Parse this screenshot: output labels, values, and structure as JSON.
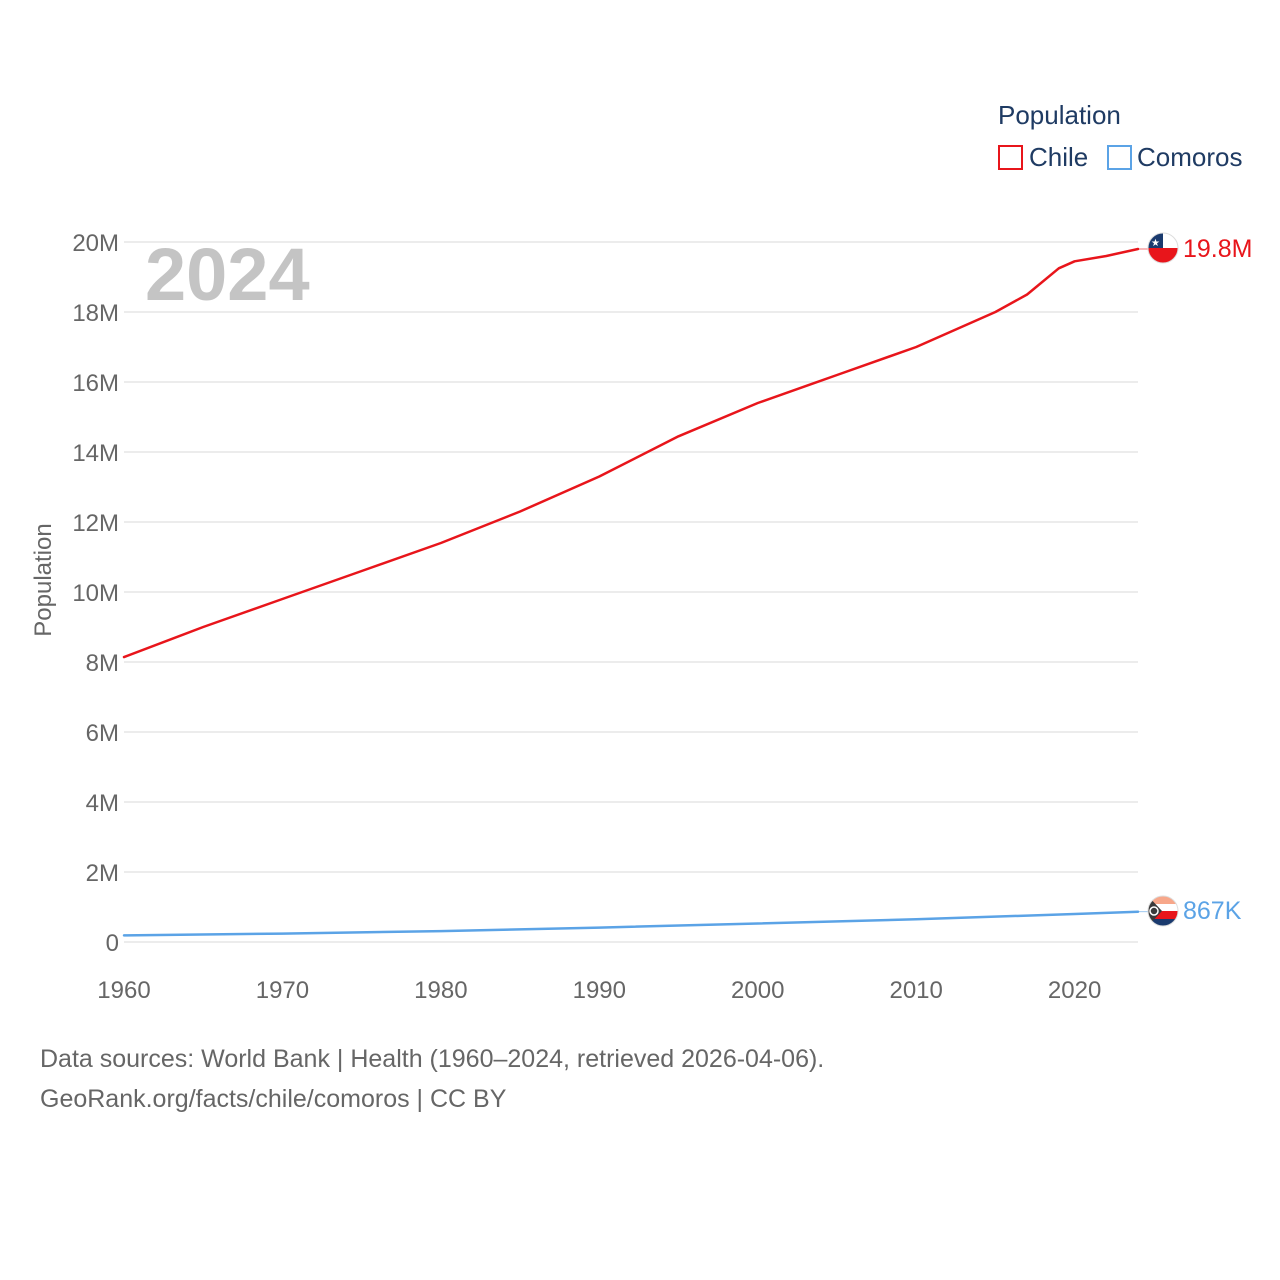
{
  "chart_data": {
    "type": "line",
    "year_label": "2024",
    "ylabel": "Population",
    "xlabel": "",
    "ylim": [
      0,
      20000000
    ],
    "xlim": [
      1960,
      2024
    ],
    "y_ticks": [
      {
        "value": 0,
        "label": "0"
      },
      {
        "value": 2000000,
        "label": "2M"
      },
      {
        "value": 4000000,
        "label": "4M"
      },
      {
        "value": 6000000,
        "label": "6M"
      },
      {
        "value": 8000000,
        "label": "8M"
      },
      {
        "value": 10000000,
        "label": "10M"
      },
      {
        "value": 12000000,
        "label": "12M"
      },
      {
        "value": 14000000,
        "label": "14M"
      },
      {
        "value": 16000000,
        "label": "16M"
      },
      {
        "value": 18000000,
        "label": "18M"
      },
      {
        "value": 20000000,
        "label": "20M"
      }
    ],
    "x_ticks": [
      {
        "value": 1960,
        "label": "1960"
      },
      {
        "value": 1970,
        "label": "1970"
      },
      {
        "value": 1980,
        "label": "1980"
      },
      {
        "value": 1990,
        "label": "1990"
      },
      {
        "value": 2000,
        "label": "2000"
      },
      {
        "value": 2010,
        "label": "2010"
      },
      {
        "value": 2020,
        "label": "2020"
      }
    ],
    "legend_title": "Population",
    "series": [
      {
        "name": "Chile",
        "color": "#e8151b",
        "end_label": "19.8M",
        "points": [
          [
            1960,
            8140000
          ],
          [
            1965,
            9000000
          ],
          [
            1970,
            9800000
          ],
          [
            1975,
            10600000
          ],
          [
            1980,
            11400000
          ],
          [
            1985,
            12300000
          ],
          [
            1990,
            13300000
          ],
          [
            1995,
            14450000
          ],
          [
            2000,
            15400000
          ],
          [
            2005,
            16200000
          ],
          [
            2010,
            17000000
          ],
          [
            2015,
            18000000
          ],
          [
            2017,
            18500000
          ],
          [
            2019,
            19250000
          ],
          [
            2020,
            19450000
          ],
          [
            2022,
            19600000
          ],
          [
            2024,
            19800000
          ]
        ]
      },
      {
        "name": "Comoros",
        "color": "#5ba3e6",
        "end_label": "867K",
        "points": [
          [
            1960,
            190000
          ],
          [
            1970,
            240000
          ],
          [
            1980,
            310000
          ],
          [
            1990,
            410000
          ],
          [
            2000,
            530000
          ],
          [
            2010,
            650000
          ],
          [
            2020,
            800000
          ],
          [
            2024,
            867000
          ]
        ]
      }
    ]
  },
  "source": {
    "line1": "Data sources: World Bank | Health (1960–2024, retrieved 2026-04-06).",
    "line2": "GeoRank.org/facts/chile/comoros | CC BY"
  }
}
